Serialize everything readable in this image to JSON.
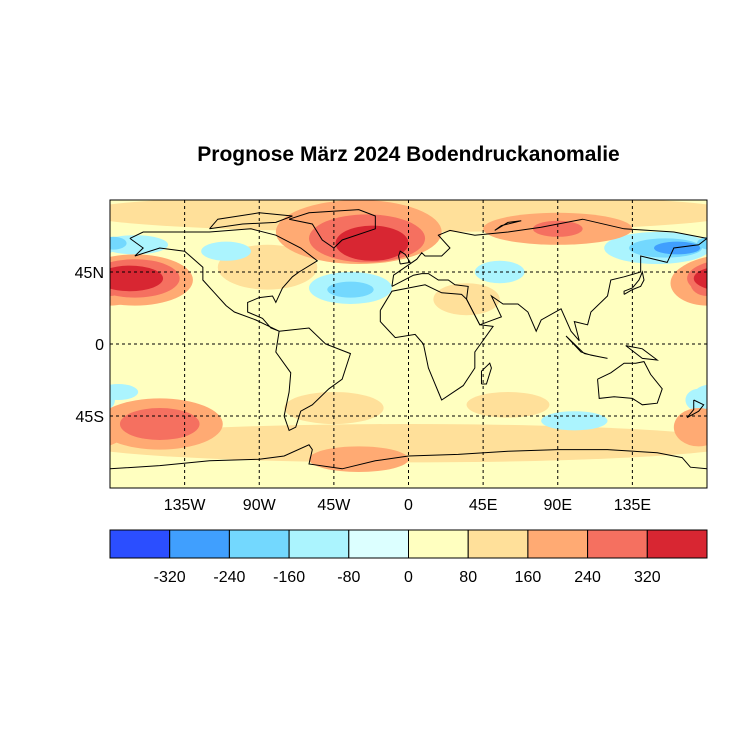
{
  "chart_data": {
    "type": "heatmap",
    "title": "Prognose März 2024 Bodendruckanomalie",
    "projection": "equirectangular",
    "lon_range": [
      -180,
      180
    ],
    "lat_range": [
      -90,
      90
    ],
    "x_ticks": [
      {
        "lon": -135,
        "label": "135W"
      },
      {
        "lon": -90,
        "label": "90W"
      },
      {
        "lon": -45,
        "label": "45W"
      },
      {
        "lon": 0,
        "label": "0"
      },
      {
        "lon": 45,
        "label": "45E"
      },
      {
        "lon": 90,
        "label": "90E"
      },
      {
        "lon": 135,
        "label": "135E"
      }
    ],
    "y_ticks": [
      {
        "lat": 45,
        "label": "45N"
      },
      {
        "lat": 0,
        "label": "0"
      },
      {
        "lat": -45,
        "label": "45S"
      }
    ],
    "grid": true,
    "colorbar": {
      "boundaries": [
        -320,
        -240,
        -160,
        -80,
        0,
        80,
        160,
        240,
        320
      ],
      "labels": [
        "-320",
        "-240",
        "-160",
        "-80",
        "0",
        "80",
        "160",
        "240",
        "320"
      ],
      "colors": [
        "#2b4eff",
        "#409ffe",
        "#73d8fe",
        "#abf4fe",
        "#dcffff",
        "#ffffc0",
        "#ffe09a",
        "#ffaa73",
        "#f57060",
        "#d82632"
      ],
      "placement": "bottom"
    },
    "background_value": 40,
    "anomaly_regions": [
      {
        "name": "arctic-band",
        "lon": 0,
        "lat": 82,
        "rlon": 200,
        "rlat": 12,
        "value": 100
      },
      {
        "name": "southern-band",
        "lon": 0,
        "lat": -62,
        "rlon": 200,
        "rlat": 12,
        "value": 100
      },
      {
        "name": "antarctic-north",
        "lon": -30,
        "lat": -72,
        "rlon": 30,
        "rlat": 8,
        "value": 180
      },
      {
        "name": "north-siberia",
        "lon": 90,
        "lat": 72,
        "rlon": 45,
        "rlat": 10,
        "value": 180
      },
      {
        "name": "north-siberia-core",
        "lon": 90,
        "lat": 72,
        "rlon": 15,
        "rlat": 5,
        "value": 260
      },
      {
        "name": "greenland-outer",
        "lon": -30,
        "lat": 70,
        "rlon": 50,
        "rlat": 20,
        "value": 180
      },
      {
        "name": "greenland-mid",
        "lon": -25,
        "lat": 66,
        "rlon": 35,
        "rlat": 15,
        "value": 260
      },
      {
        "name": "greenland-core",
        "lon": -22,
        "lat": 63,
        "rlon": 22,
        "rlat": 11,
        "value": 340
      },
      {
        "name": "north-pacific-outer",
        "lon": -165,
        "lat": 40,
        "rlon": 35,
        "rlat": 16,
        "value": 180
      },
      {
        "name": "north-pacific-mid",
        "lon": -165,
        "lat": 41,
        "rlon": 27,
        "rlat": 12,
        "value": 260
      },
      {
        "name": "north-pacific-core",
        "lon": -168,
        "lat": 41,
        "rlon": 20,
        "rlat": 8,
        "value": 340
      },
      {
        "name": "dateline-outer",
        "lon": 180,
        "lat": 38,
        "rlon": 22,
        "rlat": 14,
        "value": 180
      },
      {
        "name": "dateline-core",
        "lon": 180,
        "lat": 38,
        "rlon": 10,
        "rlat": 8,
        "value": 260
      },
      {
        "name": "south-pacific-outer",
        "lon": -150,
        "lat": -50,
        "rlon": 38,
        "rlat": 16,
        "value": 180
      },
      {
        "name": "south-pacific-mid",
        "lon": -150,
        "lat": -50,
        "rlon": 24,
        "rlat": 10,
        "value": 260
      },
      {
        "name": "tasman",
        "lon": 175,
        "lat": -52,
        "rlon": 15,
        "rlat": 12,
        "value": 180
      },
      {
        "name": "south-atlantic",
        "lon": -45,
        "lat": -40,
        "rlon": 30,
        "rlat": 10,
        "value": 100
      },
      {
        "name": "indian-south",
        "lon": 60,
        "lat": -38,
        "rlon": 25,
        "rlat": 8,
        "value": 100
      },
      {
        "name": "north-america",
        "lon": -85,
        "lat": 48,
        "rlon": 30,
        "rlat": 14,
        "value": 100
      },
      {
        "name": "sahara-arabia",
        "lon": 35,
        "lat": 28,
        "rlon": 20,
        "rlat": 10,
        "value": 100
      },
      {
        "name": "alaska-low",
        "lon": -165,
        "lat": 62,
        "rlon": 20,
        "rlat": 6,
        "value": -120
      },
      {
        "name": "alaska-low-core",
        "lon": -178,
        "lat": 63,
        "rlon": 8,
        "rlat": 4,
        "value": -200
      },
      {
        "name": "canada-low",
        "lon": -110,
        "lat": 58,
        "rlon": 15,
        "rlat": 6,
        "value": -120
      },
      {
        "name": "atlantic-low",
        "lon": -35,
        "lat": 35,
        "rlon": 25,
        "rlat": 10,
        "value": -120
      },
      {
        "name": "atlantic-low-core",
        "lon": -35,
        "lat": 34,
        "rlon": 14,
        "rlat": 5,
        "value": -200
      },
      {
        "name": "ne-asia-low",
        "lon": 150,
        "lat": 60,
        "rlon": 32,
        "rlat": 10,
        "value": -120
      },
      {
        "name": "ne-asia-low-mid",
        "lon": 155,
        "lat": 60,
        "rlon": 22,
        "rlat": 6,
        "value": -200
      },
      {
        "name": "ne-asia-low-core",
        "lon": 162,
        "lat": 60,
        "rlon": 14,
        "rlat": 4,
        "value": -280
      },
      {
        "name": "middle-east-low",
        "lon": 55,
        "lat": 45,
        "rlon": 15,
        "rlat": 7,
        "value": -120
      },
      {
        "name": "south-indian-low",
        "lon": 100,
        "lat": -48,
        "rlon": 20,
        "rlat": 6,
        "value": -120
      },
      {
        "name": "south-pacific-low",
        "lon": -175,
        "lat": -30,
        "rlon": 12,
        "rlat": 5,
        "value": -120
      },
      {
        "name": "east-australia-low",
        "lon": 175,
        "lat": -35,
        "rlon": 8,
        "rlat": 7,
        "value": -120
      }
    ]
  }
}
